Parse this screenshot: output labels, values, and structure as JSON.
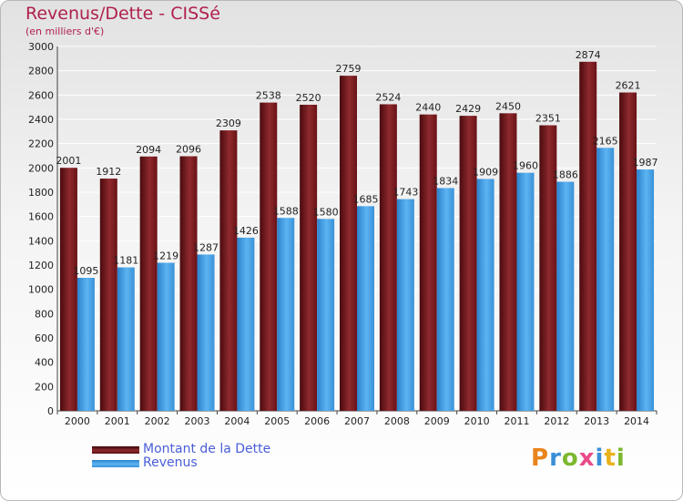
{
  "title": "Revenus/Dette - CISSé",
  "unit": "(en milliers d'€)",
  "brand": "Proxiti",
  "chart_data": {
    "type": "bar",
    "categories": [
      "2000",
      "2001",
      "2002",
      "2003",
      "2004",
      "2005",
      "2006",
      "2007",
      "2008",
      "2009",
      "2010",
      "2011",
      "2012",
      "2013",
      "2014"
    ],
    "series": [
      {
        "name": "Montant de la Dette",
        "color": "#7a1a1e",
        "values": [
          2001,
          1912,
          2094,
          2096,
          2309,
          2538,
          2520,
          2759,
          2524,
          2440,
          2429,
          2450,
          2351,
          2874,
          2621
        ]
      },
      {
        "name": "Revenus",
        "color": "#4aa3e8",
        "values": [
          1095,
          1181,
          1219,
          1287,
          1426,
          1588,
          1580,
          1685,
          1743,
          1834,
          1909,
          1960,
          1886,
          2165,
          1987
        ]
      }
    ],
    "ylim": [
      0,
      3000
    ],
    "yticks": [
      0,
      200,
      400,
      600,
      800,
      1000,
      1200,
      1400,
      1600,
      1800,
      2000,
      2200,
      2400,
      2600,
      2800,
      3000
    ],
    "grid": true,
    "legend": "bottom-left"
  }
}
